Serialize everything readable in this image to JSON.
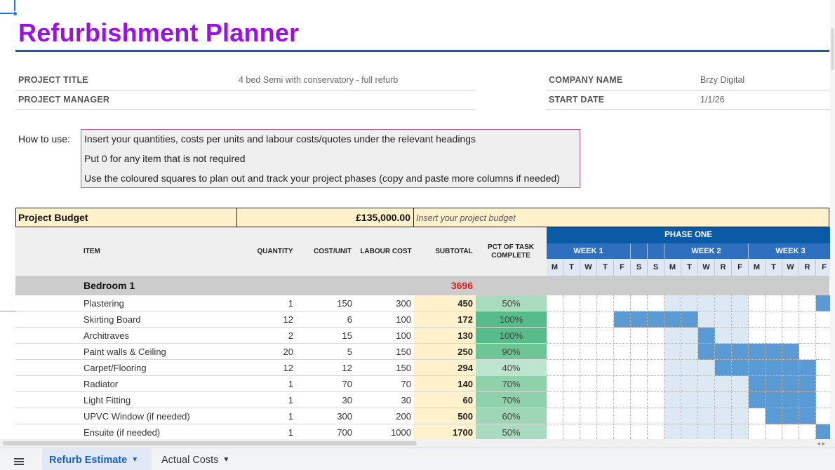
{
  "title": "Refurbishment Planner",
  "info": {
    "project_title_label": "PROJECT TITLE",
    "project_title_value": "4 bed Semi with conservatory - full refurb",
    "project_manager_label": "PROJECT MANAGER",
    "project_manager_value": "",
    "company_name_label": "COMPANY NAME",
    "company_name_value": "Brzy Digital",
    "start_date_label": "START DATE",
    "start_date_value": "1/1/26"
  },
  "howto": {
    "label": "How to use:",
    "lines": [
      "Insert your quantities, costs per units and labour costs/quotes under the relevant headings",
      "Put 0 for any item that is not required",
      "Use the coloured squares to plan out and track your project phases (copy and paste more columns if needed)"
    ]
  },
  "budget": {
    "label": "Project Budget",
    "value": "£135,000.00",
    "note": "Insert your project budget"
  },
  "headers": {
    "item": "ITEM",
    "quantity": "QUANTITY",
    "cost_unit": "COST/UNIT",
    "labour": "LABOUR COST",
    "subtotal": "SUBTOTAL",
    "pct_line1": "PCT OF TASK",
    "pct_line2": "COMPLETE"
  },
  "gantt": {
    "phase": "PHASE ONE",
    "weeks": [
      "WEEK 1",
      "WEEK 2",
      "WEEK 3"
    ],
    "days": [
      "M",
      "T",
      "W",
      "T",
      "F",
      "S",
      "S",
      "M",
      "T",
      "W",
      "R",
      "F",
      "M",
      "T",
      "W",
      "R",
      "F"
    ]
  },
  "section": {
    "name": "Bedroom 1",
    "total": "3696"
  },
  "rows": [
    {
      "item": "Plastering",
      "qty": "1",
      "cost": "150",
      "labour": "300",
      "subtotal": "450",
      "pct": "50%",
      "pct_value": 50
    },
    {
      "item": "Skirting Board",
      "qty": "12",
      "cost": "6",
      "labour": "100",
      "subtotal": "172",
      "pct": "100%",
      "pct_value": 100
    },
    {
      "item": "Architraves",
      "qty": "2",
      "cost": "15",
      "labour": "100",
      "subtotal": "130",
      "pct": "100%",
      "pct_value": 100
    },
    {
      "item": "Paint walls & Ceiling",
      "qty": "20",
      "cost": "5",
      "labour": "150",
      "subtotal": "250",
      "pct": "90%",
      "pct_value": 90
    },
    {
      "item": "Carpet/Flooring",
      "qty": "12",
      "cost": "12",
      "labour": "150",
      "subtotal": "294",
      "pct": "40%",
      "pct_value": 40
    },
    {
      "item": "Radiator",
      "qty": "1",
      "cost": "70",
      "labour": "70",
      "subtotal": "140",
      "pct": "70%",
      "pct_value": 70
    },
    {
      "item": "Light Fitting",
      "qty": "1",
      "cost": "30",
      "labour": "30",
      "subtotal": "60",
      "pct": "70%",
      "pct_value": 70
    },
    {
      "item": "UPVC Window (if needed)",
      "qty": "1",
      "cost": "300",
      "labour": "200",
      "subtotal": "500",
      "pct": "60%",
      "pct_value": 60
    },
    {
      "item": "Ensuite (if needed)",
      "qty": "1",
      "cost": "700",
      "labour": "1000",
      "subtotal": "1700",
      "pct": "50%",
      "pct_value": 50
    }
  ],
  "colors": {
    "title": "#9c10e8",
    "phase_header": "#0b5aa6",
    "week_header": "#2f6fbf",
    "gantt_filled": "#5b9bd5",
    "gantt_week2_shade": "#dde8f5",
    "subtotal_bg": "#fff1cc",
    "section_total": "#e01b1b"
  },
  "tabs": {
    "active": "Refurb Estimate",
    "inactive": "Actual Costs"
  }
}
